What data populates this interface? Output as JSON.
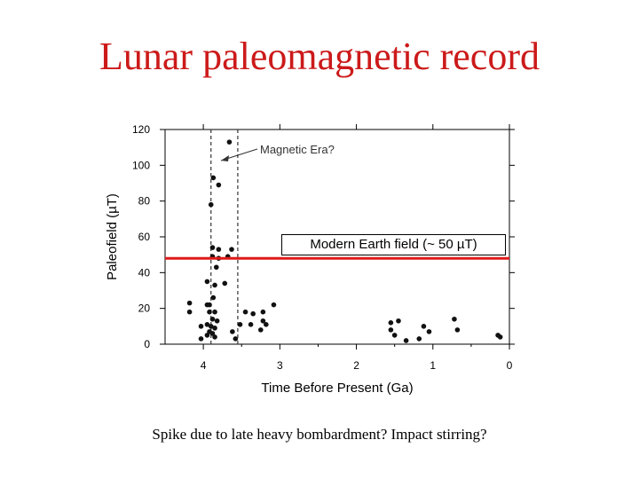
{
  "slide": {
    "title": "Lunar paleomagnetic record",
    "caption": "Spike due to late heavy bombardment?  Impact stirring?"
  },
  "chart_data": {
    "type": "scatter",
    "xlabel": "Time Before Present (Ga)",
    "ylabel": "Paleofield (µT)",
    "xlim": [
      4.5,
      0
    ],
    "ylim": [
      0,
      120
    ],
    "x_ticks": [
      "4",
      "3",
      "2",
      "1",
      "0"
    ],
    "y_ticks": [
      "0",
      "20",
      "40",
      "60",
      "80",
      "100",
      "120"
    ],
    "points": [
      {
        "x": 3.66,
        "y": 113
      },
      {
        "x": 3.87,
        "y": 93
      },
      {
        "x": 3.8,
        "y": 89
      },
      {
        "x": 3.9,
        "y": 78
      },
      {
        "x": 3.88,
        "y": 54
      },
      {
        "x": 3.8,
        "y": 53
      },
      {
        "x": 3.63,
        "y": 53
      },
      {
        "x": 3.88,
        "y": 49
      },
      {
        "x": 3.8,
        "y": 48
      },
      {
        "x": 3.68,
        "y": 49
      },
      {
        "x": 3.83,
        "y": 43
      },
      {
        "x": 3.95,
        "y": 35
      },
      {
        "x": 3.72,
        "y": 34
      },
      {
        "x": 3.85,
        "y": 33
      },
      {
        "x": 3.87,
        "y": 26
      },
      {
        "x": 4.18,
        "y": 23
      },
      {
        "x": 4.18,
        "y": 18
      },
      {
        "x": 3.95,
        "y": 22
      },
      {
        "x": 3.92,
        "y": 22
      },
      {
        "x": 3.92,
        "y": 18
      },
      {
        "x": 3.85,
        "y": 18
      },
      {
        "x": 3.88,
        "y": 14
      },
      {
        "x": 3.82,
        "y": 13
      },
      {
        "x": 4.03,
        "y": 10
      },
      {
        "x": 3.95,
        "y": 11
      },
      {
        "x": 3.9,
        "y": 10
      },
      {
        "x": 3.85,
        "y": 9
      },
      {
        "x": 3.92,
        "y": 7
      },
      {
        "x": 3.88,
        "y": 6
      },
      {
        "x": 3.95,
        "y": 5
      },
      {
        "x": 3.85,
        "y": 4
      },
      {
        "x": 4.03,
        "y": 3
      },
      {
        "x": 3.62,
        "y": 7
      },
      {
        "x": 3.58,
        "y": 3
      },
      {
        "x": 3.45,
        "y": 18
      },
      {
        "x": 3.35,
        "y": 17
      },
      {
        "x": 3.22,
        "y": 18
      },
      {
        "x": 3.08,
        "y": 22
      },
      {
        "x": 3.52,
        "y": 11
      },
      {
        "x": 3.38,
        "y": 11
      },
      {
        "x": 3.22,
        "y": 13
      },
      {
        "x": 3.18,
        "y": 11
      },
      {
        "x": 3.25,
        "y": 8
      },
      {
        "x": 1.55,
        "y": 12
      },
      {
        "x": 1.45,
        "y": 13
      },
      {
        "x": 1.55,
        "y": 8
      },
      {
        "x": 1.5,
        "y": 5
      },
      {
        "x": 1.35,
        "y": 2
      },
      {
        "x": 1.18,
        "y": 3
      },
      {
        "x": 1.12,
        "y": 10
      },
      {
        "x": 1.05,
        "y": 7
      },
      {
        "x": 0.72,
        "y": 14
      },
      {
        "x": 0.68,
        "y": 8
      },
      {
        "x": 0.15,
        "y": 5
      },
      {
        "x": 0.12,
        "y": 4
      }
    ],
    "dashed_lines_x": [
      3.9,
      3.55
    ],
    "reference_line": {
      "y": 48,
      "label": "Modern Earth field (~ 50 µT)",
      "color": "#e01a1a"
    },
    "annotation": {
      "text": "Magnetic Era?"
    }
  }
}
